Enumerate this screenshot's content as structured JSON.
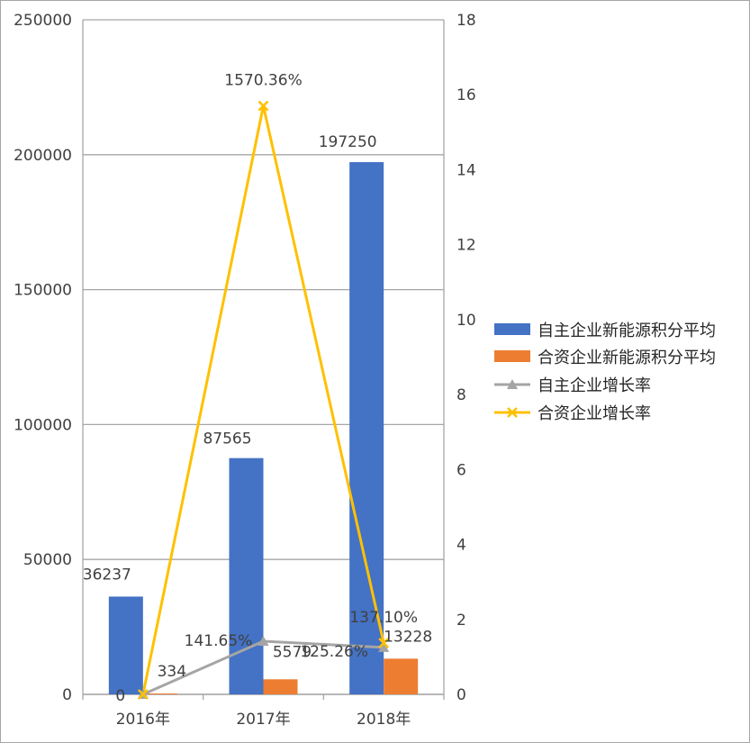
{
  "chart_data": {
    "type": "bar",
    "categories": [
      "2016年",
      "2017年",
      "2018年"
    ],
    "series": [
      {
        "name": "自主企业新能源积分平均",
        "kind": "bar",
        "axis": "left",
        "color": "#4472c4",
        "values": [
          36237,
          87565,
          197250
        ],
        "labels": [
          "36237",
          "87565",
          "197250"
        ]
      },
      {
        "name": "合资企业新能源积分平均",
        "kind": "bar",
        "axis": "left",
        "color": "#ed7d31",
        "values": [
          334,
          5579,
          13228
        ],
        "labels": [
          "334",
          "5579",
          "13228"
        ]
      },
      {
        "name": "自主企业增长率",
        "kind": "line",
        "axis": "right",
        "color": "#a5a5a5",
        "marker": "triangle",
        "values": [
          0,
          1.4165,
          1.2526
        ],
        "labels": [
          "0",
          "141.65%",
          "125.26%"
        ]
      },
      {
        "name": "合资企业增长率",
        "kind": "line",
        "axis": "right",
        "color": "#ffc000",
        "marker": "x",
        "values": [
          0,
          15.7036,
          1.371
        ],
        "labels": [
          "",
          "1570.36%",
          "137.10%"
        ]
      }
    ],
    "y_left": {
      "min": 0,
      "max": 250000,
      "ticks": [
        "0",
        "50000",
        "100000",
        "150000",
        "200000",
        "250000"
      ]
    },
    "y_right": {
      "min": 0,
      "max": 18,
      "ticks": [
        "0",
        "2",
        "4",
        "6",
        "8",
        "10",
        "12",
        "14",
        "16",
        "18"
      ]
    },
    "grid": true,
    "legend": "right"
  }
}
